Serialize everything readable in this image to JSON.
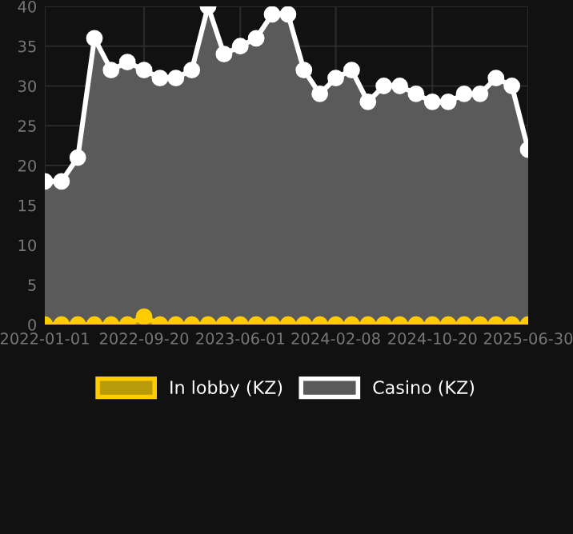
{
  "chart_data": {
    "type": "area",
    "x": [
      "2022-01-01",
      "2022-02-14",
      "2022-03-29",
      "2022-05-12",
      "2022-06-25",
      "2022-08-07",
      "2022-09-20",
      "2022-11-01",
      "2022-12-13",
      "2023-01-24",
      "2023-03-08",
      "2023-04-19",
      "2023-06-01",
      "2023-07-13",
      "2023-08-24",
      "2023-10-05",
      "2023-11-16",
      "2023-12-28",
      "2024-02-08",
      "2024-03-21",
      "2024-05-03",
      "2024-06-14",
      "2024-07-26",
      "2024-09-07",
      "2024-10-20",
      "2024-12-01",
      "2025-01-12",
      "2025-02-23",
      "2025-04-06",
      "2025-05-18",
      "2025-06-30"
    ],
    "series": [
      {
        "name": "In lobby (KZ)",
        "color": "#ffcc00",
        "values": [
          0,
          0,
          0,
          0,
          0,
          0,
          1,
          0,
          0,
          0,
          0,
          0,
          0,
          0,
          0,
          0,
          0,
          0,
          0,
          0,
          0,
          0,
          0,
          0,
          0,
          0,
          0,
          0,
          0,
          0,
          0
        ]
      },
      {
        "name": "Casino (KZ)",
        "color": "#ffffff",
        "values": [
          18,
          18,
          21,
          36,
          32,
          33,
          32,
          31,
          31,
          32,
          40,
          34,
          35,
          36,
          39,
          39,
          32,
          29,
          31,
          32,
          28,
          30,
          30,
          29,
          28,
          28,
          29,
          29,
          31,
          30,
          22
        ]
      }
    ],
    "xlim": [
      "2022-01-01",
      "2025-06-30"
    ],
    "xticks": [
      "2022-01-01",
      "2022-09-20",
      "2023-06-01",
      "2024-02-08",
      "2024-10-20",
      "2025-06-30"
    ],
    "ylim": [
      0,
      40
    ],
    "yticks": [
      0,
      5,
      10,
      15,
      20,
      25,
      30,
      35,
      40
    ],
    "grid": true,
    "legend": "bottom",
    "marker": "circle",
    "line_style": "solid"
  }
}
